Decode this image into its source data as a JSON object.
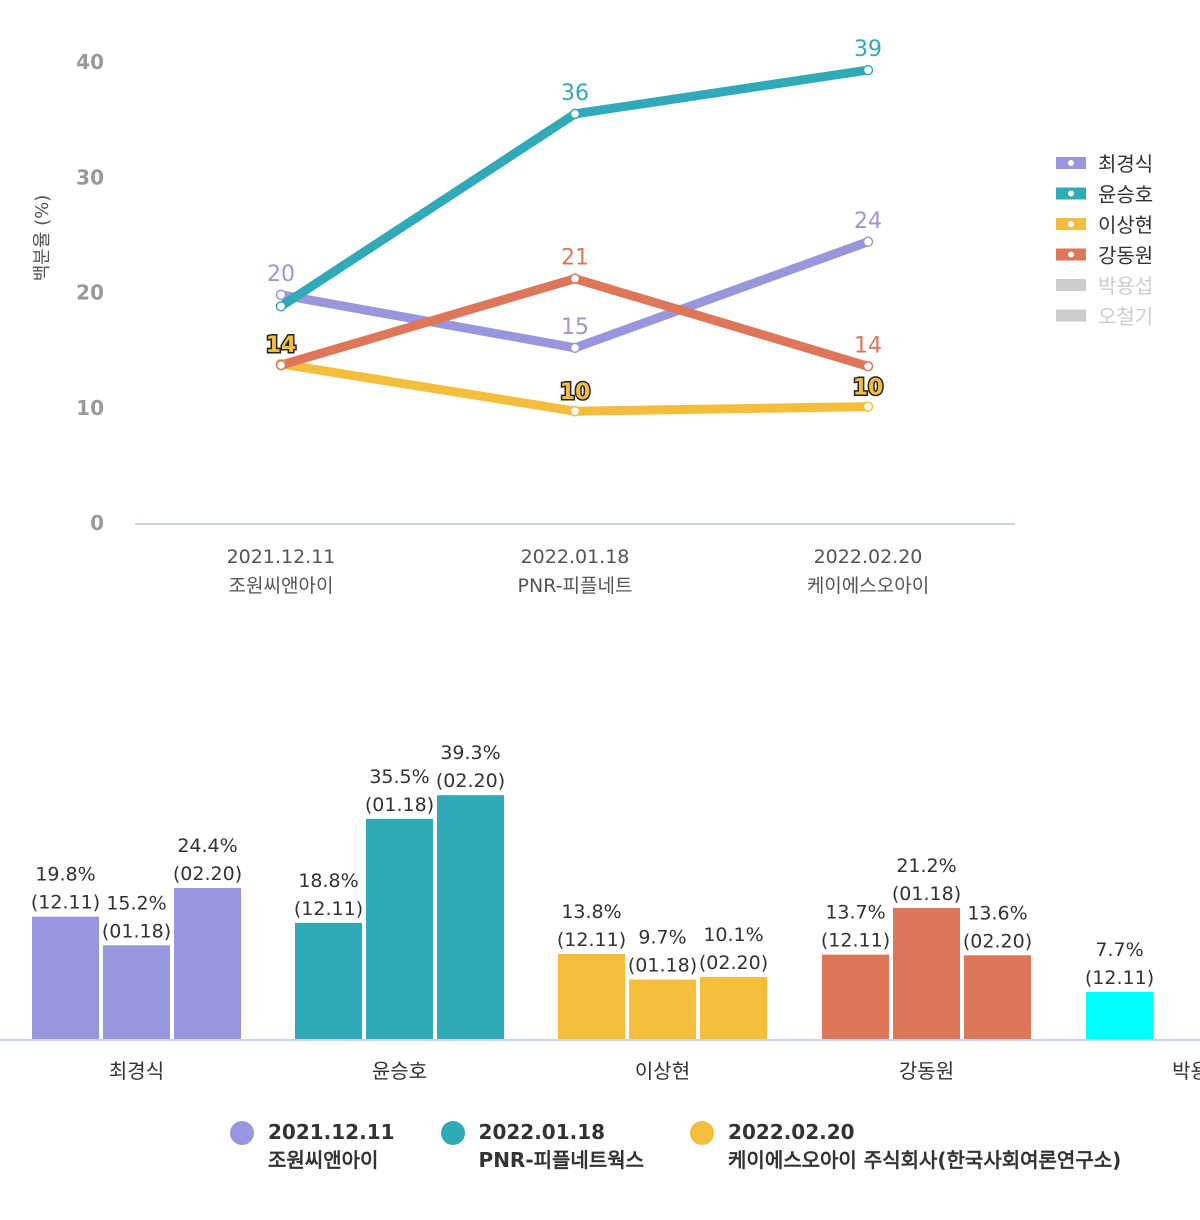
{
  "chart_data": [
    {
      "type": "line",
      "title": "",
      "ylabel": "백분율 (%)",
      "xlabel": "",
      "ylim": [
        0,
        40
      ],
      "yticks": [
        0,
        10,
        20,
        30,
        40
      ],
      "grid": false,
      "legend_position": "right",
      "categories": [
        {
          "date": "2021.12.11",
          "pollster": "조원씨앤아이"
        },
        {
          "date": "2022.01.18",
          "pollster": "PNR-피플네트"
        },
        {
          "date": "2022.02.20",
          "pollster": "케이에스오아이"
        }
      ],
      "series": [
        {
          "name": "최경식",
          "color": "#9896dd",
          "values": [
            19.8,
            15.2,
            24.4
          ],
          "labels": [
            "20",
            "15",
            "24"
          ],
          "visible": true,
          "bold_label": false
        },
        {
          "name": "윤승호",
          "color": "#30a9b8",
          "values": [
            18.8,
            35.5,
            39.3
          ],
          "labels": [
            "",
            "36",
            "39"
          ],
          "visible": true,
          "bold_label": false
        },
        {
          "name": "이상현",
          "color": "#f4bd3c",
          "values": [
            13.8,
            9.7,
            10.1
          ],
          "labels": [
            "14",
            "10",
            "10"
          ],
          "visible": true,
          "bold_label": true
        },
        {
          "name": "강동원",
          "color": "#de7659",
          "values": [
            13.7,
            21.2,
            13.6
          ],
          "labels": [
            "",
            "21",
            "14"
          ],
          "visible": true,
          "bold_label": false
        },
        {
          "name": "박용섭",
          "color": "#cccccc",
          "values": [],
          "labels": [],
          "visible": false
        },
        {
          "name": "오철기",
          "color": "#cccccc",
          "values": [],
          "labels": [],
          "visible": false
        }
      ]
    },
    {
      "type": "bar",
      "title": "",
      "ylim": [
        0,
        40
      ],
      "categories": [
        "최경식",
        "윤승호",
        "이상현",
        "강동원",
        "박용"
      ],
      "bars": [
        [
          {
            "value": 19.8,
            "label": "19.8%",
            "date": "(12.11)"
          },
          {
            "value": 15.2,
            "label": "15.2%",
            "date": "(01.18)"
          },
          {
            "value": 24.4,
            "label": "24.4%",
            "date": "(02.20)"
          }
        ],
        [
          {
            "value": 18.8,
            "label": "18.8%",
            "date": "(12.11)"
          },
          {
            "value": 35.5,
            "label": "35.5%",
            "date": "(01.18)"
          },
          {
            "value": 39.3,
            "label": "39.3%",
            "date": "(02.20)"
          }
        ],
        [
          {
            "value": 13.8,
            "label": "13.8%",
            "date": "(12.11)"
          },
          {
            "value": 9.7,
            "label": "9.7%",
            "date": "(01.18)"
          },
          {
            "value": 10.1,
            "label": "10.1%",
            "date": "(02.20)"
          }
        ],
        [
          {
            "value": 13.7,
            "label": "13.7%",
            "date": "(12.11)"
          },
          {
            "value": 21.2,
            "label": "21.2%",
            "date": "(01.18)"
          },
          {
            "value": 13.6,
            "label": "13.6%",
            "date": "(02.20)"
          }
        ],
        [
          {
            "value": 7.7,
            "label": "7.7%",
            "date": "(12.11)"
          }
        ]
      ],
      "group_colors": [
        "#9896dd",
        "#30a9b8",
        "#f4bd3c",
        "#de7659",
        "#00ffff"
      ],
      "legend": [
        {
          "date": "2021.12.11",
          "pollster": "조원씨앤아이",
          "color": "#9896dd"
        },
        {
          "date": "2022.01.18",
          "pollster": "PNR-피플네트웍스",
          "color": "#30a9b8"
        },
        {
          "date": "2022.02.20",
          "pollster": "케이에스오아이 주식회사(한국사회여론연구소)",
          "color": "#f4bd3c"
        }
      ],
      "legend_position": "bottom"
    }
  ]
}
